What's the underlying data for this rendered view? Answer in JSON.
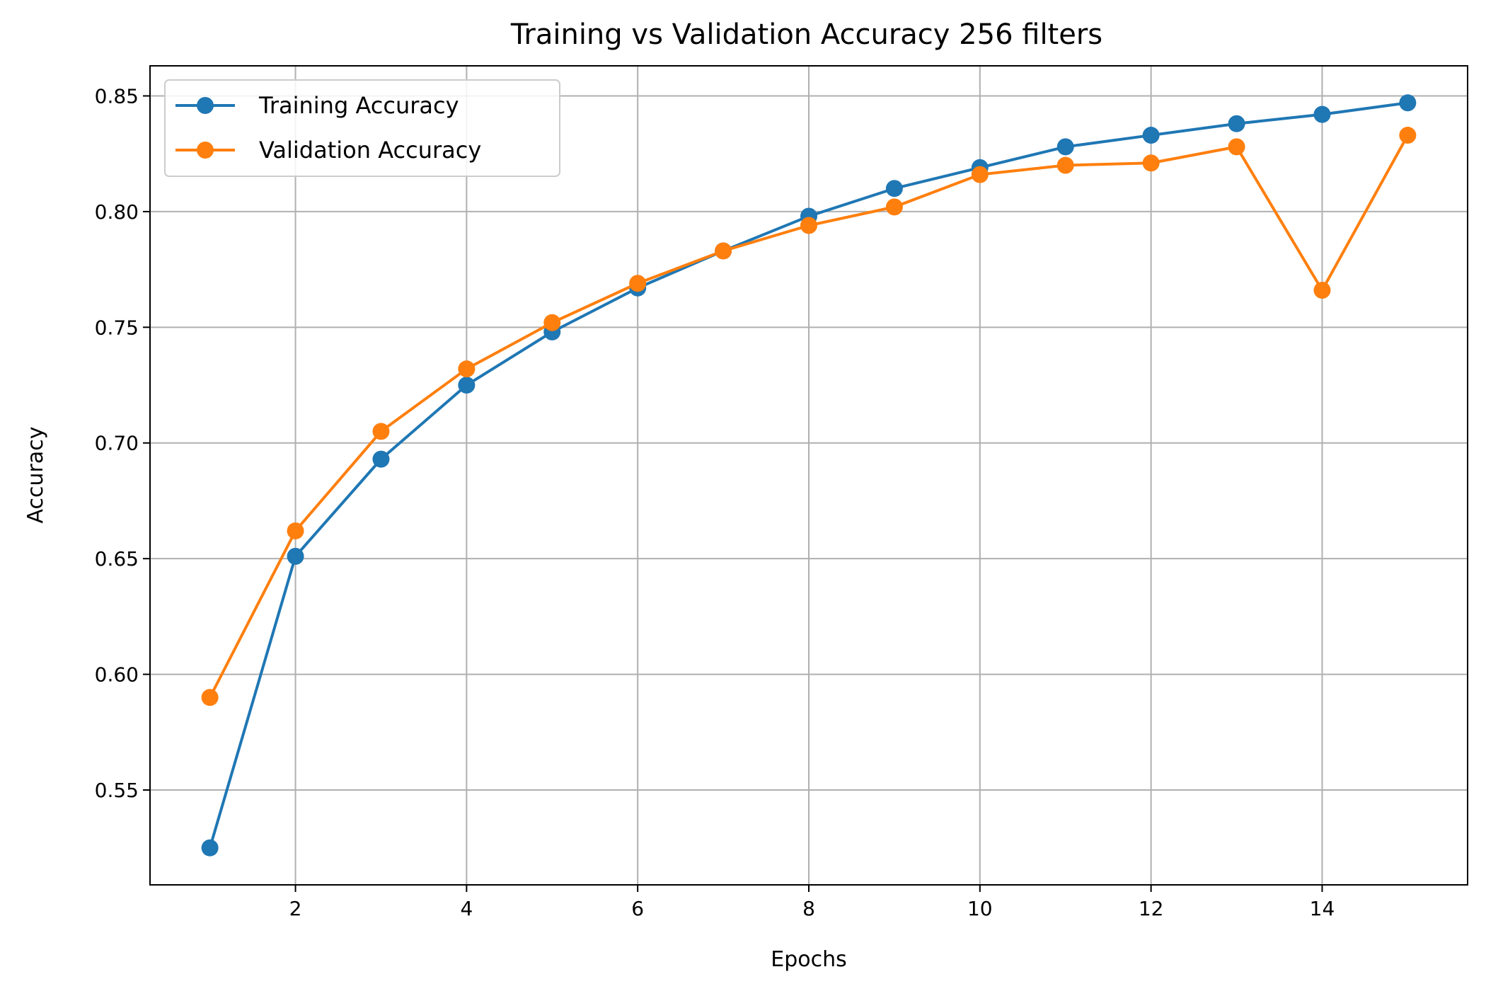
{
  "chart_data": {
    "type": "line",
    "title": "Training vs Validation Accuracy 256 filters",
    "xlabel": "Epochs",
    "ylabel": "Accuracy",
    "x": [
      1,
      2,
      3,
      4,
      5,
      6,
      7,
      8,
      9,
      10,
      11,
      12,
      13,
      14,
      15
    ],
    "xlim": [
      0.3,
      15.7
    ],
    "ylim": [
      0.509,
      0.863
    ],
    "xticks": [
      2,
      4,
      6,
      8,
      10,
      12,
      14
    ],
    "xtick_labels": [
      "2",
      "4",
      "6",
      "8",
      "10",
      "12",
      "14"
    ],
    "yticks": [
      0.55,
      0.6,
      0.65,
      0.7,
      0.75,
      0.8,
      0.85
    ],
    "ytick_labels": [
      "0.55",
      "0.60",
      "0.65",
      "0.70",
      "0.75",
      "0.80",
      "0.85"
    ],
    "grid": true,
    "legend_position": "top-left",
    "series": [
      {
        "name": "Training Accuracy",
        "color": "#1f77b4",
        "values": [
          0.525,
          0.651,
          0.693,
          0.725,
          0.748,
          0.767,
          0.783,
          0.798,
          0.81,
          0.819,
          0.828,
          0.833,
          0.838,
          0.842,
          0.847
        ]
      },
      {
        "name": "Validation Accuracy",
        "color": "#ff7f0e",
        "values": [
          0.59,
          0.662,
          0.705,
          0.732,
          0.752,
          0.769,
          0.783,
          0.794,
          0.802,
          0.816,
          0.82,
          0.821,
          0.828,
          0.766,
          0.833
        ]
      }
    ]
  }
}
